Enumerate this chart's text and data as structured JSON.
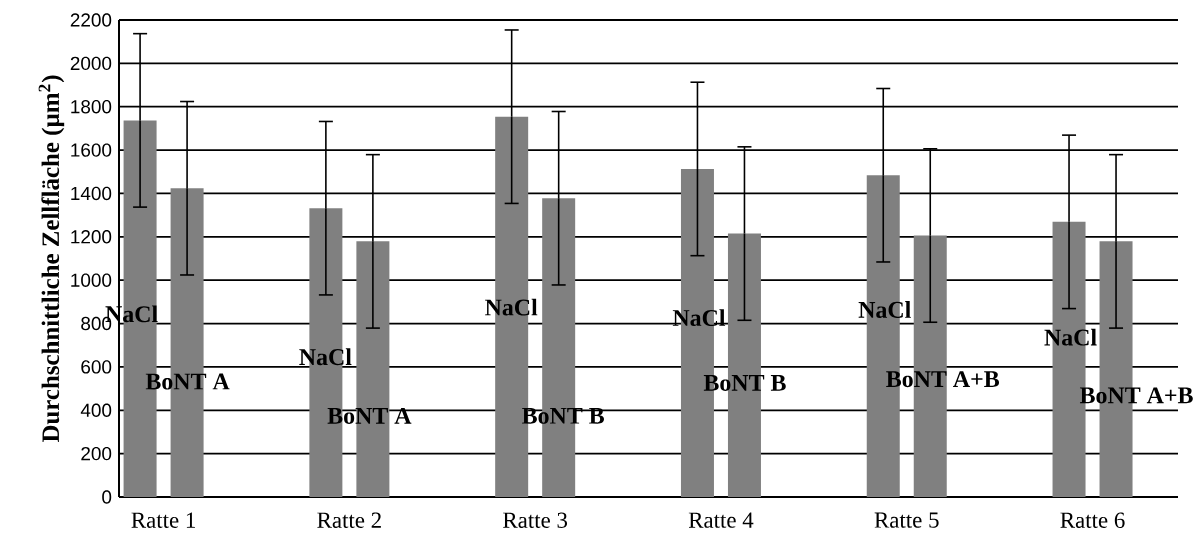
{
  "chart_data": {
    "type": "bar",
    "ylabel": "Durchschnittliche Zellfläche (µm$^{2}$)",
    "categories": [
      "Ratte 1",
      "Ratte 2",
      "Ratte 3",
      "Ratte 4",
      "Ratte 5",
      "Ratte 6"
    ],
    "series": [
      {
        "color": "#808080",
        "values": [
          1737,
          1332,
          1754,
          1513,
          1484,
          1269
        ],
        "errors": [
          400,
          400,
          400,
          400,
          400,
          400
        ]
      },
      {
        "color": "#808080",
        "values": [
          1424,
          1179,
          1378,
          1215,
          1206,
          1179
        ],
        "errors": [
          400,
          400,
          400,
          400,
          400,
          400
        ]
      }
    ],
    "ylim": [
      0,
      2200
    ],
    "yticks": [
      0,
      200,
      400,
      600,
      800,
      1000,
      1200,
      1400,
      1600,
      1800,
      2000,
      2200
    ],
    "grid": "y",
    "annotations": [
      "NaCl",
      "BoNT A",
      "NaCl",
      "BoNT A",
      "NaCl",
      "BoNT B",
      "NaCl",
      "BoNT B",
      "NaCl",
      "BoNT A+B",
      "NaCl",
      "BoNT A+B"
    ]
  }
}
